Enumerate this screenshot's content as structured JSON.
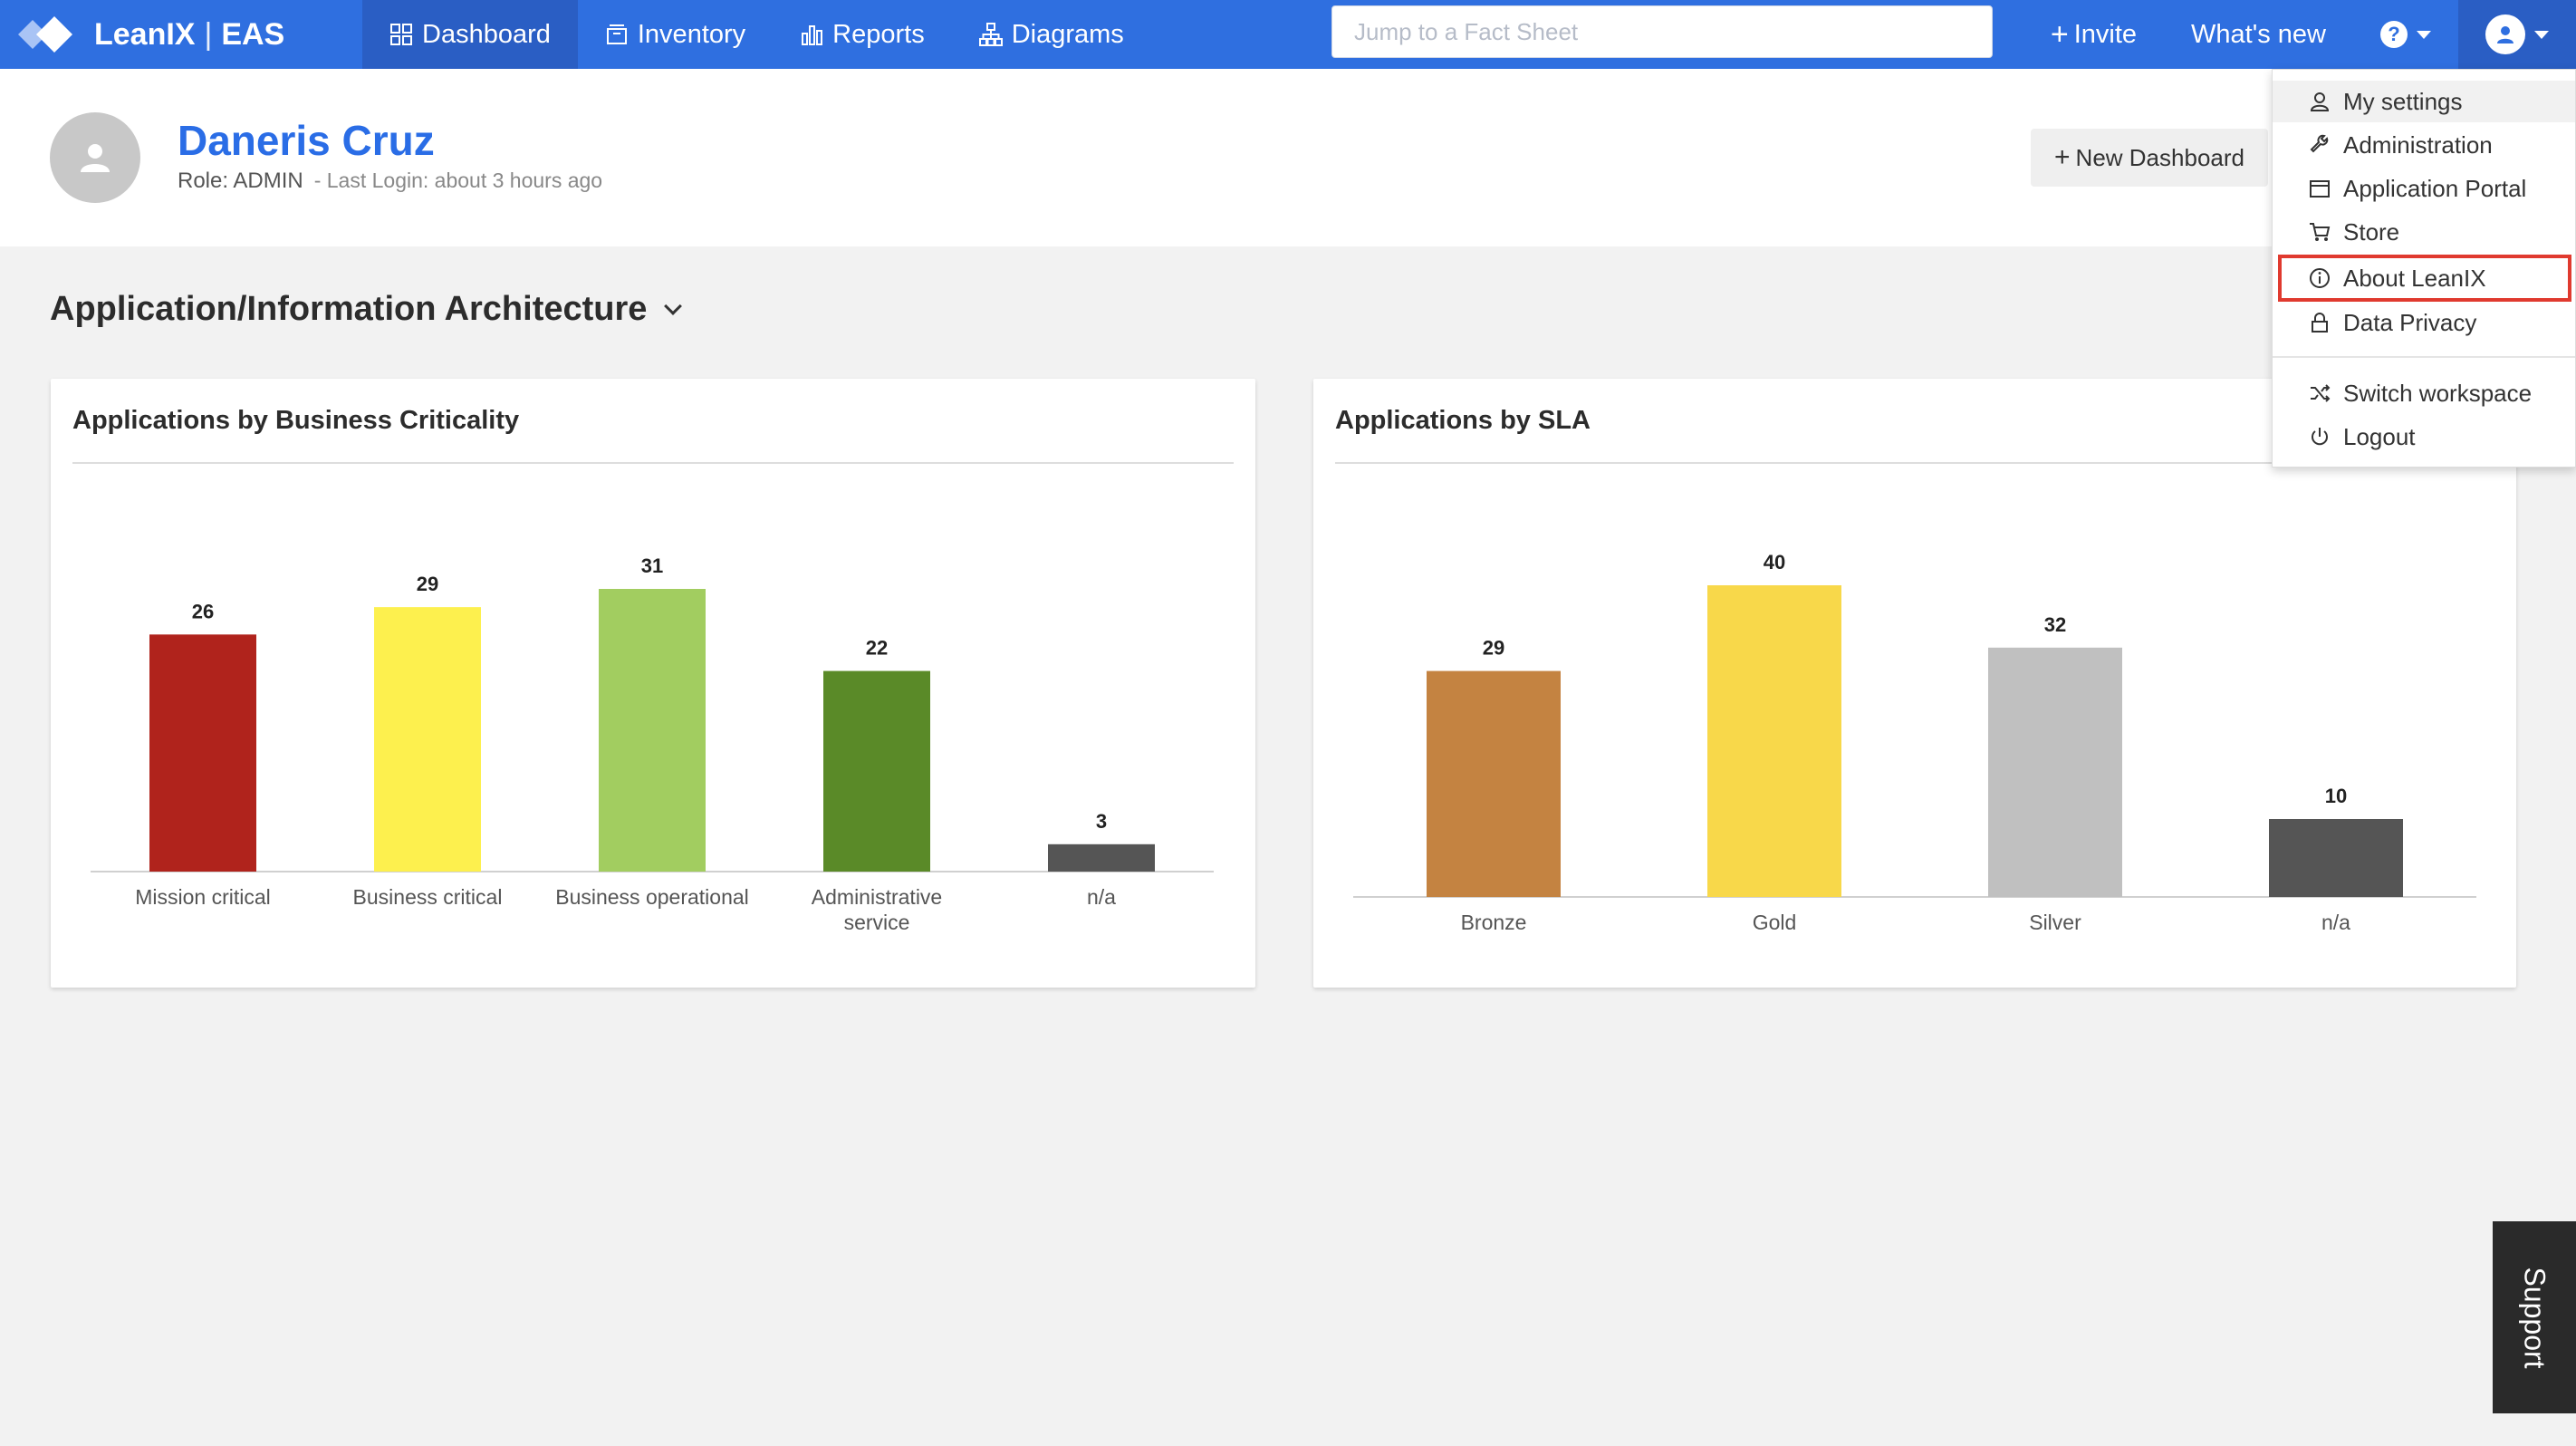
{
  "brand": {
    "name": "LeanIX",
    "workspace": "EAS"
  },
  "nav": {
    "items": [
      {
        "label": "Dashboard",
        "icon": "grid-icon",
        "active": true
      },
      {
        "label": "Inventory",
        "icon": "inventory-icon"
      },
      {
        "label": "Reports",
        "icon": "bar-chart-icon"
      },
      {
        "label": "Diagrams",
        "icon": "sitemap-icon"
      }
    ]
  },
  "search": {
    "placeholder": "Jump to a Fact Sheet"
  },
  "topRight": {
    "invite": "Invite",
    "whats_new": "What's new"
  },
  "profile": {
    "name": "Daneris Cruz",
    "role": "Role: ADMIN",
    "last_login": "- Last Login: about 3 hours ago",
    "new_dashboard": "New Dashboard"
  },
  "section": {
    "title": "Application/Information Architecture"
  },
  "userMenu": {
    "items": [
      {
        "label": "My settings",
        "icon": "user-icon"
      },
      {
        "label": "Administration",
        "icon": "wrench-icon"
      },
      {
        "label": "Application Portal",
        "icon": "window-icon"
      },
      {
        "label": "Store",
        "icon": "cart-icon"
      },
      {
        "label": "About LeanIX",
        "icon": "info-icon"
      },
      {
        "label": "Data Privacy",
        "icon": "lock-icon"
      },
      {
        "label": "Switch workspace",
        "icon": "shuffle-icon"
      },
      {
        "label": "Logout",
        "icon": "power-icon"
      }
    ]
  },
  "support": {
    "label": "Support"
  },
  "chart_data": [
    {
      "type": "bar",
      "title": "Applications by Business Criticality",
      "categories": [
        "Mission critical",
        "Business critical",
        "Business operational",
        "Administrative service",
        "n/a"
      ],
      "category_lines": [
        [
          "Mission critical"
        ],
        [
          "Business critical"
        ],
        [
          "Business operational"
        ],
        [
          "Administrative",
          "service"
        ],
        [
          "n/a"
        ]
      ],
      "values": [
        26,
        29,
        31,
        22,
        3
      ],
      "colors": [
        "#b0231c",
        "#fdf04e",
        "#a2cd60",
        "#5a8a28",
        "#555555"
      ],
      "ylim": [
        0,
        31
      ]
    },
    {
      "type": "bar",
      "title": "Applications by SLA",
      "categories": [
        "Bronze",
        "Gold",
        "Silver",
        "n/a"
      ],
      "category_lines": [
        [
          "Bronze"
        ],
        [
          "Gold"
        ],
        [
          "Silver"
        ],
        [
          "n/a"
        ]
      ],
      "values": [
        29,
        40,
        32,
        10
      ],
      "colors": [
        "#c48341",
        "#f8d84a",
        "#c0c0c0",
        "#555555"
      ],
      "ylim": [
        0,
        40
      ]
    }
  ]
}
